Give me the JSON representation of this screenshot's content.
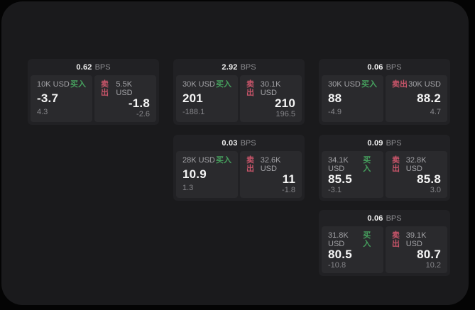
{
  "labels": {
    "bps_unit": "BPS",
    "buy_side": "买入",
    "sell_side": "卖出"
  },
  "colors": {
    "buy": "#46a05e",
    "sell": "#c9556a",
    "window_bg": "#1a1a1c",
    "card_bg": "#212124",
    "panel_bg": "#2a2a2d"
  },
  "cards": [
    {
      "bps": "0.62",
      "row": 0,
      "col": 0,
      "buy": {
        "notional": "10K USD",
        "price": "-3.7",
        "change": "4.3"
      },
      "sell": {
        "notional": "5.5K USD",
        "price": "-1.8",
        "change": "-2.6"
      }
    },
    {
      "bps": "2.92",
      "row": 0,
      "col": 1,
      "buy": {
        "notional": "30K USD",
        "price": "201",
        "change": "-188.1"
      },
      "sell": {
        "notional": "30.1K USD",
        "price": "210",
        "change": "196.5"
      }
    },
    {
      "bps": "0.06",
      "row": 0,
      "col": 2,
      "buy": {
        "notional": "30K USD",
        "price": "88",
        "change": "-4.9"
      },
      "sell": {
        "notional": "30K USD",
        "price": "88.2",
        "change": "4.7"
      }
    },
    {
      "bps": "0.03",
      "row": 1,
      "col": 1,
      "buy": {
        "notional": "28K USD",
        "price": "10.9",
        "change": "1.3"
      },
      "sell": {
        "notional": "32.6K USD",
        "price": "11",
        "change": "-1.8"
      }
    },
    {
      "bps": "0.09",
      "row": 1,
      "col": 2,
      "buy": {
        "notional": "34.1K USD",
        "price": "85.5",
        "change": "-3.1"
      },
      "sell": {
        "notional": "32.8K USD",
        "price": "85.8",
        "change": "3.0"
      }
    },
    {
      "bps": "0.06",
      "row": 2,
      "col": 2,
      "buy": {
        "notional": "31.8K USD",
        "price": "80.5",
        "change": "-10.8"
      },
      "sell": {
        "notional": "39.1K USD",
        "price": "80.7",
        "change": "10.2"
      }
    }
  ]
}
